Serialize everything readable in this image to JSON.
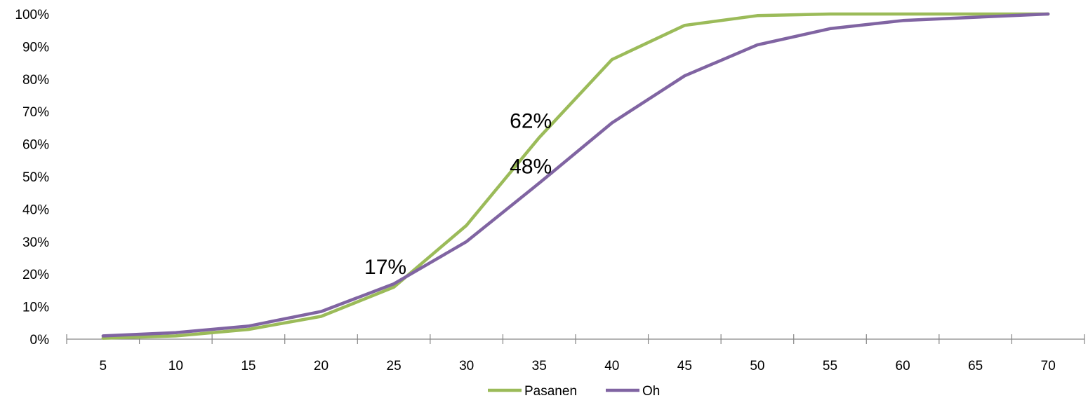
{
  "chart_data": {
    "type": "line",
    "x": [
      "5",
      "10",
      "15",
      "20",
      "25",
      "30",
      "35",
      "40",
      "45",
      "50",
      "55",
      "60",
      "65",
      "70"
    ],
    "ylim": [
      0,
      1
    ],
    "yticks": [
      {
        "value": 0,
        "label": "0%"
      },
      {
        "value": 0.1,
        "label": "10%"
      },
      {
        "value": 0.2,
        "label": "20%"
      },
      {
        "value": 0.3,
        "label": "30%"
      },
      {
        "value": 0.4,
        "label": "40%"
      },
      {
        "value": 0.5,
        "label": "50%"
      },
      {
        "value": 0.6,
        "label": "60%"
      },
      {
        "value": 0.7,
        "label": "70%"
      },
      {
        "value": 0.8,
        "label": "80%"
      },
      {
        "value": 0.9,
        "label": "90%"
      },
      {
        "value": 1,
        "label": "100%"
      }
    ],
    "grid": false,
    "legend": "bottom-center",
    "series": [
      {
        "name": "Pasanen",
        "color": "#9bbb59",
        "values": [
          0.003,
          0.01,
          0.03,
          0.07,
          0.16,
          0.35,
          0.62,
          0.86,
          0.965,
          0.995,
          1.0,
          1.0,
          1.0,
          1.0
        ]
      },
      {
        "name": "Oh",
        "color": "#8064a2",
        "values": [
          0.01,
          0.02,
          0.04,
          0.085,
          0.17,
          0.3,
          0.48,
          0.665,
          0.81,
          0.905,
          0.955,
          0.98,
          0.99,
          1.0
        ]
      }
    ],
    "annotations": [
      {
        "text": "17%",
        "x_index": 4,
        "value": 0.17
      },
      {
        "text": "62%",
        "x_index": 6,
        "value": 0.62
      },
      {
        "text": "48%",
        "x_index": 6,
        "value": 0.48
      }
    ]
  }
}
